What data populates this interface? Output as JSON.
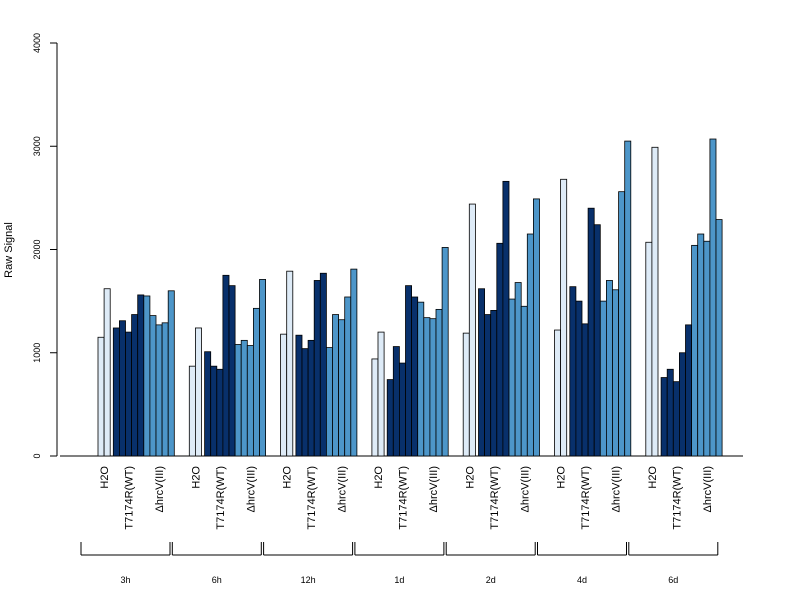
{
  "chart_data": {
    "type": "bar",
    "ylabel": "Raw Signal",
    "ylim": [
      0,
      4000
    ],
    "yticks": [
      0,
      1000,
      2000,
      3000,
      4000
    ],
    "grid": false,
    "group_labels": [
      "H2O",
      "T7174R(WT)",
      "ΔhrcV(III)"
    ],
    "colors": {
      "H2O": "#deebf7",
      "T7174R(WT)": "#08306b",
      "ΔhrcV(III)": "#4d96c9"
    },
    "timepoints": [
      {
        "label": "3h",
        "H2O": [
          1150,
          1620
        ],
        "T7174R(WT)": [
          1240,
          1310,
          1200,
          1370,
          1560
        ],
        "ΔhrcV(III)": [
          1550,
          1360,
          1270,
          1290,
          1600
        ]
      },
      {
        "label": "6h",
        "H2O": [
          870,
          1240
        ],
        "T7174R(WT)": [
          1010,
          870,
          840,
          1750,
          1650
        ],
        "ΔhrcV(III)": [
          1080,
          1120,
          1070,
          1430,
          1710
        ]
      },
      {
        "label": "12h",
        "H2O": [
          1180,
          1790
        ],
        "T7174R(WT)": [
          1170,
          1040,
          1120,
          1700,
          1770
        ],
        "ΔhrcV(III)": [
          1050,
          1370,
          1320,
          1540,
          1810
        ]
      },
      {
        "label": "1d",
        "H2O": [
          940,
          1200
        ],
        "T7174R(WT)": [
          740,
          1060,
          900,
          1650,
          1540
        ],
        "ΔhrcV(III)": [
          1490,
          1340,
          1330,
          1420,
          2020
        ]
      },
      {
        "label": "2d",
        "H2O": [
          1190,
          2440
        ],
        "T7174R(WT)": [
          1620,
          1370,
          1410,
          2060,
          2660
        ],
        "ΔhrcV(III)": [
          1520,
          1680,
          1450,
          2150,
          2490
        ]
      },
      {
        "label": "4d",
        "H2O": [
          1220,
          2680
        ],
        "T7174R(WT)": [
          1640,
          1500,
          1280,
          2400,
          2240
        ],
        "ΔhrcV(III)": [
          1500,
          1700,
          1610,
          2560,
          3050
        ]
      },
      {
        "label": "6d",
        "H2O": [
          2070,
          2990
        ],
        "T7174R(WT)": [
          760,
          840,
          720,
          1000,
          1270
        ],
        "ΔhrcV(III)": [
          2040,
          2150,
          2080,
          3070,
          2290
        ]
      }
    ]
  }
}
